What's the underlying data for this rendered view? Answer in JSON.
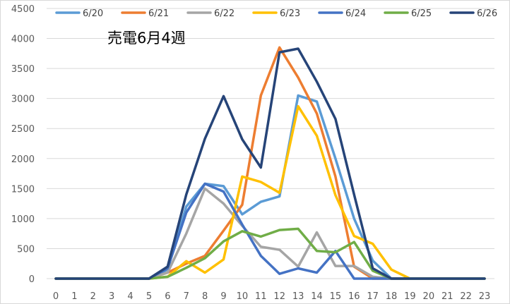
{
  "chart_data": {
    "type": "line",
    "title": "売電6月4週",
    "xlabel": "",
    "ylabel": "",
    "x": [
      0,
      1,
      2,
      3,
      4,
      5,
      6,
      7,
      8,
      9,
      10,
      11,
      12,
      13,
      14,
      15,
      16,
      17,
      18,
      19,
      20,
      21,
      22,
      23
    ],
    "x_tick_labels": [
      "0",
      "1",
      "2",
      "3",
      "4",
      "5",
      "6",
      "7",
      "8",
      "9",
      "10",
      "11",
      "12",
      "13",
      "14",
      "15",
      "16",
      "17",
      "18",
      "19",
      "20",
      "21",
      "22",
      "23"
    ],
    "ylim": [
      0,
      4500
    ],
    "y_ticks": [
      0,
      500,
      1000,
      1500,
      2000,
      2500,
      3000,
      3500,
      4000,
      4500
    ],
    "grid": "horizontal",
    "legend_position": "top",
    "series": [
      {
        "name": "6/20",
        "color": "#5B9BD5",
        "values": [
          0,
          0,
          0,
          0,
          0,
          0,
          150,
          1200,
          1580,
          1540,
          1070,
          1280,
          1370,
          3050,
          2950,
          2000,
          1000,
          300,
          0,
          0,
          0,
          0,
          0,
          0
        ]
      },
      {
        "name": "6/21",
        "color": "#ED7D31",
        "values": [
          0,
          0,
          0,
          0,
          0,
          0,
          100,
          250,
          380,
          800,
          1230,
          3050,
          3850,
          3350,
          2750,
          1700,
          200,
          0,
          0,
          0,
          0,
          0,
          0,
          0
        ]
      },
      {
        "name": "6/22",
        "color": "#A5A5A5",
        "values": [
          0,
          0,
          0,
          0,
          0,
          0,
          100,
          750,
          1500,
          1250,
          880,
          530,
          480,
          200,
          770,
          210,
          210,
          30,
          0,
          0,
          0,
          0,
          0,
          0
        ]
      },
      {
        "name": "6/23",
        "color": "#FFC000",
        "values": [
          0,
          0,
          0,
          0,
          0,
          0,
          30,
          290,
          100,
          320,
          1700,
          1610,
          1430,
          2870,
          2380,
          1390,
          710,
          580,
          150,
          0,
          0,
          0,
          0,
          0
        ]
      },
      {
        "name": "6/24",
        "color": "#4472C4",
        "values": [
          0,
          0,
          0,
          0,
          0,
          0,
          170,
          1100,
          1580,
          1450,
          900,
          380,
          80,
          170,
          100,
          460,
          0,
          0,
          0,
          0,
          0,
          0,
          0,
          0
        ]
      },
      {
        "name": "6/25",
        "color": "#70AD47",
        "values": [
          0,
          0,
          0,
          0,
          0,
          0,
          30,
          180,
          340,
          620,
          790,
          700,
          810,
          830,
          460,
          440,
          610,
          130,
          0,
          0,
          0,
          0,
          0,
          0
        ]
      },
      {
        "name": "6/26",
        "color": "#264478",
        "values": [
          0,
          0,
          0,
          0,
          0,
          0,
          200,
          1400,
          2330,
          3040,
          2320,
          1850,
          3770,
          3830,
          3280,
          2660,
          1400,
          170,
          0,
          0,
          0,
          0,
          0,
          0
        ]
      }
    ]
  }
}
